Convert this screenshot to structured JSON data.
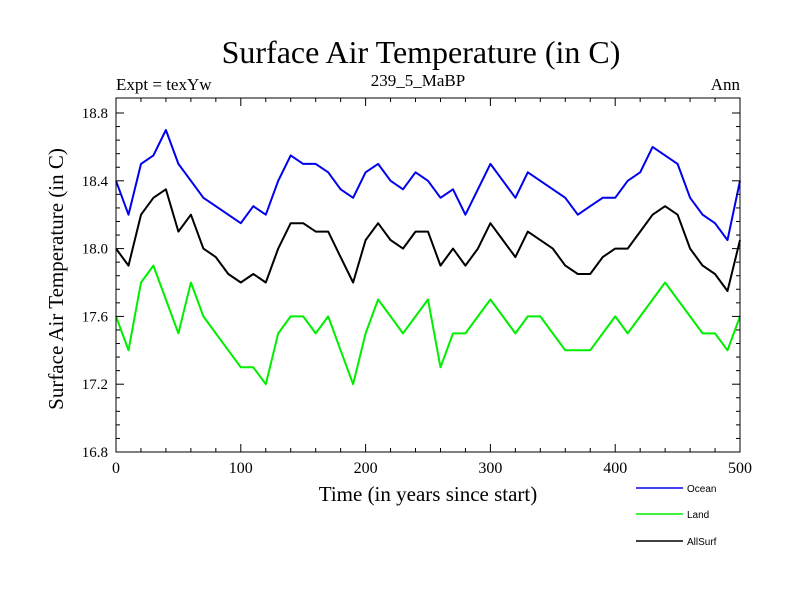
{
  "chart_data": {
    "type": "line",
    "title": "Surface Air Temperature (in C)",
    "subtitle_left": "Expt = texYw",
    "subtitle_center": "239_5_MaBP",
    "subtitle_right": "Ann",
    "xlabel": "Time (in years since start)",
    "ylabel": "Surface Air Temperature (in C)",
    "xlim": [
      0,
      500
    ],
    "ylim": [
      16.8,
      18.9
    ],
    "x_ticks": [
      0,
      100,
      200,
      300,
      400,
      500
    ],
    "x_tick_labels": [
      "0",
      "100",
      "200",
      "300",
      "400",
      "500"
    ],
    "y_ticks": [
      16.8,
      17.2,
      17.6,
      18.0,
      18.4,
      18.8
    ],
    "y_tick_labels": [
      "16.8",
      "17.2",
      "17.6",
      "18.0",
      "18.4",
      "18.8"
    ],
    "grid": false,
    "legend_position": "bottom-right, below plot",
    "x": [
      0,
      10,
      20,
      30,
      40,
      50,
      60,
      70,
      80,
      90,
      100,
      110,
      120,
      130,
      140,
      150,
      160,
      170,
      180,
      190,
      200,
      210,
      220,
      230,
      240,
      250,
      260,
      270,
      280,
      290,
      300,
      310,
      320,
      330,
      340,
      350,
      360,
      370,
      380,
      390,
      400,
      410,
      420,
      430,
      440,
      450,
      460,
      470,
      480,
      490,
      500
    ],
    "series": [
      {
        "name": "Ocean",
        "color": "#0000ee",
        "values": [
          18.4,
          18.2,
          18.5,
          18.55,
          18.7,
          18.5,
          18.4,
          18.3,
          18.25,
          18.2,
          18.15,
          18.25,
          18.2,
          18.4,
          18.55,
          18.5,
          18.5,
          18.45,
          18.35,
          18.3,
          18.45,
          18.5,
          18.4,
          18.35,
          18.45,
          18.4,
          18.3,
          18.35,
          18.2,
          18.35,
          18.5,
          18.4,
          18.3,
          18.45,
          18.4,
          18.35,
          18.3,
          18.2,
          18.25,
          18.3,
          18.3,
          18.4,
          18.45,
          18.6,
          18.55,
          18.5,
          18.3,
          18.2,
          18.15,
          18.05,
          18.4
        ]
      },
      {
        "name": "Land",
        "color": "#00ee00",
        "values": [
          17.6,
          17.4,
          17.8,
          17.9,
          17.7,
          17.5,
          17.8,
          17.6,
          17.5,
          17.4,
          17.3,
          17.3,
          17.2,
          17.5,
          17.6,
          17.6,
          17.5,
          17.6,
          17.4,
          17.2,
          17.5,
          17.7,
          17.6,
          17.5,
          17.6,
          17.7,
          17.3,
          17.5,
          17.5,
          17.6,
          17.7,
          17.6,
          17.5,
          17.6,
          17.6,
          17.5,
          17.4,
          17.4,
          17.4,
          17.5,
          17.6,
          17.5,
          17.6,
          17.7,
          17.8,
          17.7,
          17.6,
          17.5,
          17.5,
          17.4,
          17.6
        ]
      },
      {
        "name": "AllSurf",
        "color": "#000000",
        "values": [
          18.0,
          17.9,
          18.2,
          18.3,
          18.35,
          18.1,
          18.2,
          18.0,
          17.95,
          17.85,
          17.8,
          17.85,
          17.8,
          18.0,
          18.15,
          18.15,
          18.1,
          18.1,
          17.95,
          17.8,
          18.05,
          18.15,
          18.05,
          18.0,
          18.1,
          18.1,
          17.9,
          18.0,
          17.9,
          18.0,
          18.15,
          18.05,
          17.95,
          18.1,
          18.05,
          18.0,
          17.9,
          17.85,
          17.85,
          17.95,
          18.0,
          18.0,
          18.1,
          18.2,
          18.25,
          18.2,
          18.0,
          17.9,
          17.85,
          17.75,
          18.05
        ]
      }
    ]
  }
}
